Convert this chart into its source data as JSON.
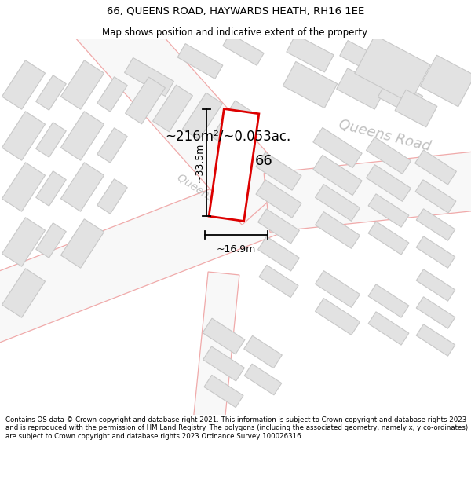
{
  "title": "66, QUEENS ROAD, HAYWARDS HEATH, RH16 1EE",
  "subtitle": "Map shows position and indicative extent of the property.",
  "footer": "Contains OS data © Crown copyright and database right 2021. This information is subject to Crown copyright and database rights 2023 and is reproduced with the permission of HM Land Registry. The polygons (including the associated geometry, namely x, y co-ordinates) are subject to Crown copyright and database rights 2023 Ordnance Survey 100026316.",
  "background_color": "#ffffff",
  "map_bg_color": "#f8f8f8",
  "area_label": "~216m²/~0.053ac.",
  "width_label": "~16.9m",
  "height_label": "~33.5m",
  "property_number": "66",
  "road_label_main": "Queens Road",
  "road_label_small": "Queens R",
  "plot_color": "#dd0000",
  "road_label_color": "#c0c0c0",
  "building_fill": "#e2e2e2",
  "building_edge": "#c8c8c8",
  "road_fill": "#f8f8f8",
  "road_edge_color": "#f0aaaa",
  "dim_line_color": "#000000",
  "title_fontsize": 9.5,
  "subtitle_fontsize": 8.5,
  "footer_fontsize": 6.2,
  "area_fontsize": 12,
  "number_fontsize": 13,
  "road_label_fontsize": 13,
  "road_label_small_fontsize": 10,
  "dim_fontsize": 9
}
